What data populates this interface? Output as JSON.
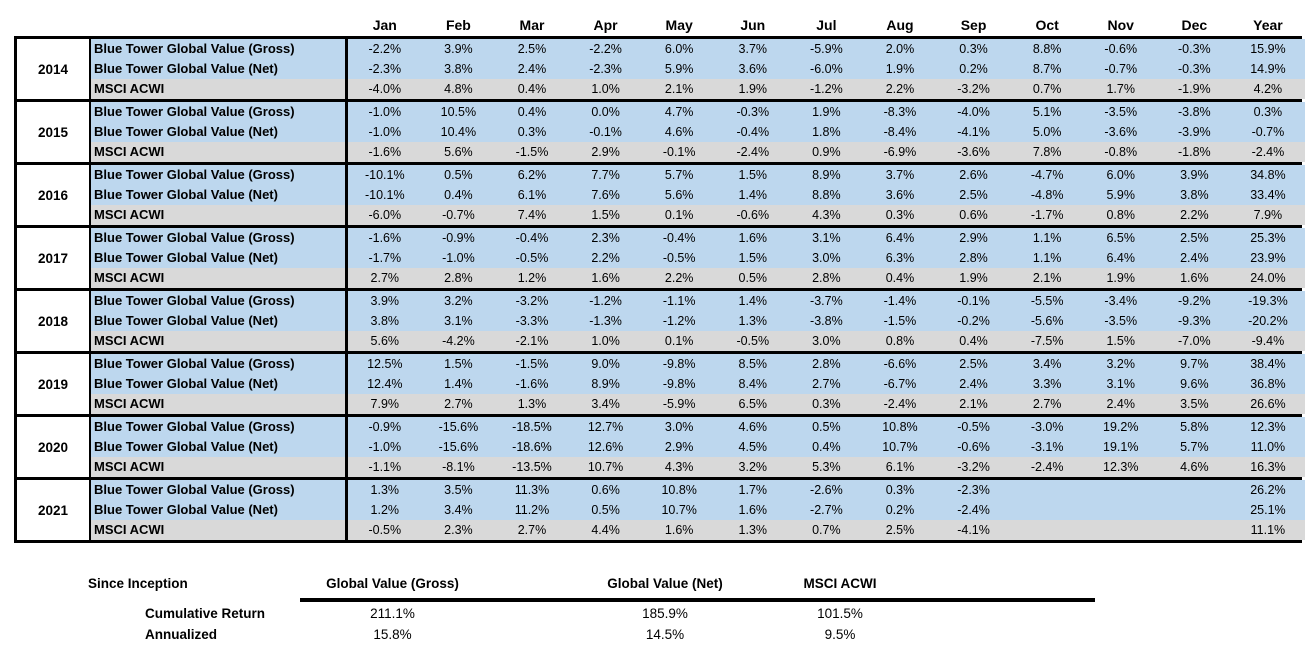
{
  "chart_data": {
    "type": "table",
    "months": [
      "Jan",
      "Feb",
      "Mar",
      "Apr",
      "May",
      "Jun",
      "Jul",
      "Aug",
      "Sep",
      "Oct",
      "Nov",
      "Dec",
      "Year"
    ],
    "series_labels": [
      "Blue Tower Global Value (Gross)",
      "Blue Tower Global Value (Net)",
      "MSCI ACWI"
    ],
    "years": [
      {
        "year": "2014",
        "rows": [
          [
            "-2.2%",
            "3.9%",
            "2.5%",
            "-2.2%",
            "6.0%",
            "3.7%",
            "-5.9%",
            "2.0%",
            "0.3%",
            "8.8%",
            "-0.6%",
            "-0.3%",
            "15.9%"
          ],
          [
            "-2.3%",
            "3.8%",
            "2.4%",
            "-2.3%",
            "5.9%",
            "3.6%",
            "-6.0%",
            "1.9%",
            "0.2%",
            "8.7%",
            "-0.7%",
            "-0.3%",
            "14.9%"
          ],
          [
            "-4.0%",
            "4.8%",
            "0.4%",
            "1.0%",
            "2.1%",
            "1.9%",
            "-1.2%",
            "2.2%",
            "-3.2%",
            "0.7%",
            "1.7%",
            "-1.9%",
            "4.2%"
          ]
        ]
      },
      {
        "year": "2015",
        "rows": [
          [
            "-1.0%",
            "10.5%",
            "0.4%",
            "0.0%",
            "4.7%",
            "-0.3%",
            "1.9%",
            "-8.3%",
            "-4.0%",
            "5.1%",
            "-3.5%",
            "-3.8%",
            "0.3%"
          ],
          [
            "-1.0%",
            "10.4%",
            "0.3%",
            "-0.1%",
            "4.6%",
            "-0.4%",
            "1.8%",
            "-8.4%",
            "-4.1%",
            "5.0%",
            "-3.6%",
            "-3.9%",
            "-0.7%"
          ],
          [
            "-1.6%",
            "5.6%",
            "-1.5%",
            "2.9%",
            "-0.1%",
            "-2.4%",
            "0.9%",
            "-6.9%",
            "-3.6%",
            "7.8%",
            "-0.8%",
            "-1.8%",
            "-2.4%"
          ]
        ]
      },
      {
        "year": "2016",
        "rows": [
          [
            "-10.1%",
            "0.5%",
            "6.2%",
            "7.7%",
            "5.7%",
            "1.5%",
            "8.9%",
            "3.7%",
            "2.6%",
            "-4.7%",
            "6.0%",
            "3.9%",
            "34.8%"
          ],
          [
            "-10.1%",
            "0.4%",
            "6.1%",
            "7.6%",
            "5.6%",
            "1.4%",
            "8.8%",
            "3.6%",
            "2.5%",
            "-4.8%",
            "5.9%",
            "3.8%",
            "33.4%"
          ],
          [
            "-6.0%",
            "-0.7%",
            "7.4%",
            "1.5%",
            "0.1%",
            "-0.6%",
            "4.3%",
            "0.3%",
            "0.6%",
            "-1.7%",
            "0.8%",
            "2.2%",
            "7.9%"
          ]
        ]
      },
      {
        "year": "2017",
        "rows": [
          [
            "-1.6%",
            "-0.9%",
            "-0.4%",
            "2.3%",
            "-0.4%",
            "1.6%",
            "3.1%",
            "6.4%",
            "2.9%",
            "1.1%",
            "6.5%",
            "2.5%",
            "25.3%"
          ],
          [
            "-1.7%",
            "-1.0%",
            "-0.5%",
            "2.2%",
            "-0.5%",
            "1.5%",
            "3.0%",
            "6.3%",
            "2.8%",
            "1.1%",
            "6.4%",
            "2.4%",
            "23.9%"
          ],
          [
            "2.7%",
            "2.8%",
            "1.2%",
            "1.6%",
            "2.2%",
            "0.5%",
            "2.8%",
            "0.4%",
            "1.9%",
            "2.1%",
            "1.9%",
            "1.6%",
            "24.0%"
          ]
        ]
      },
      {
        "year": "2018",
        "rows": [
          [
            "3.9%",
            "3.2%",
            "-3.2%",
            "-1.2%",
            "-1.1%",
            "1.4%",
            "-3.7%",
            "-1.4%",
            "-0.1%",
            "-5.5%",
            "-3.4%",
            "-9.2%",
            "-19.3%"
          ],
          [
            "3.8%",
            "3.1%",
            "-3.3%",
            "-1.3%",
            "-1.2%",
            "1.3%",
            "-3.8%",
            "-1.5%",
            "-0.2%",
            "-5.6%",
            "-3.5%",
            "-9.3%",
            "-20.2%"
          ],
          [
            "5.6%",
            "-4.2%",
            "-2.1%",
            "1.0%",
            "0.1%",
            "-0.5%",
            "3.0%",
            "0.8%",
            "0.4%",
            "-7.5%",
            "1.5%",
            "-7.0%",
            "-9.4%"
          ]
        ]
      },
      {
        "year": "2019",
        "rows": [
          [
            "12.5%",
            "1.5%",
            "-1.5%",
            "9.0%",
            "-9.8%",
            "8.5%",
            "2.8%",
            "-6.6%",
            "2.5%",
            "3.4%",
            "3.2%",
            "9.7%",
            "38.4%"
          ],
          [
            "12.4%",
            "1.4%",
            "-1.6%",
            "8.9%",
            "-9.8%",
            "8.4%",
            "2.7%",
            "-6.7%",
            "2.4%",
            "3.3%",
            "3.1%",
            "9.6%",
            "36.8%"
          ],
          [
            "7.9%",
            "2.7%",
            "1.3%",
            "3.4%",
            "-5.9%",
            "6.5%",
            "0.3%",
            "-2.4%",
            "2.1%",
            "2.7%",
            "2.4%",
            "3.5%",
            "26.6%"
          ]
        ]
      },
      {
        "year": "2020",
        "rows": [
          [
            "-0.9%",
            "-15.6%",
            "-18.5%",
            "12.7%",
            "3.0%",
            "4.6%",
            "0.5%",
            "10.8%",
            "-0.5%",
            "-3.0%",
            "19.2%",
            "5.8%",
            "12.3%"
          ],
          [
            "-1.0%",
            "-15.6%",
            "-18.6%",
            "12.6%",
            "2.9%",
            "4.5%",
            "0.4%",
            "10.7%",
            "-0.6%",
            "-3.1%",
            "19.1%",
            "5.7%",
            "11.0%"
          ],
          [
            "-1.1%",
            "-8.1%",
            "-13.5%",
            "10.7%",
            "4.3%",
            "3.2%",
            "5.3%",
            "6.1%",
            "-3.2%",
            "-2.4%",
            "12.3%",
            "4.6%",
            "16.3%"
          ]
        ]
      },
      {
        "year": "2021",
        "rows": [
          [
            "1.3%",
            "3.5%",
            "11.3%",
            "0.6%",
            "10.8%",
            "1.7%",
            "-2.6%",
            "0.3%",
            "-2.3%",
            "",
            "",
            "",
            "26.2%"
          ],
          [
            "1.2%",
            "3.4%",
            "11.2%",
            "0.5%",
            "10.7%",
            "1.6%",
            "-2.7%",
            "0.2%",
            "-2.4%",
            "",
            "",
            "",
            "25.1%"
          ],
          [
            "-0.5%",
            "2.3%",
            "2.7%",
            "4.4%",
            "1.6%",
            "1.3%",
            "0.7%",
            "2.5%",
            "-4.1%",
            "",
            "",
            "",
            "11.1%"
          ]
        ]
      }
    ],
    "summary": {
      "title": "Since Inception",
      "columns": [
        "Global Value (Gross)",
        "Global Value (Net)",
        "MSCI ACWI"
      ],
      "rows": [
        {
          "label": "Cumulative Return",
          "values": [
            "211.1%",
            "185.9%",
            "101.5%"
          ]
        },
        {
          "label": "Annualized",
          "values": [
            "15.8%",
            "14.5%",
            "9.5%"
          ]
        }
      ]
    },
    "colors": {
      "fund_row_highlight": "#BDD7EE",
      "benchmark_row_highlight": "#D9D9D9",
      "border": "#000000"
    }
  }
}
